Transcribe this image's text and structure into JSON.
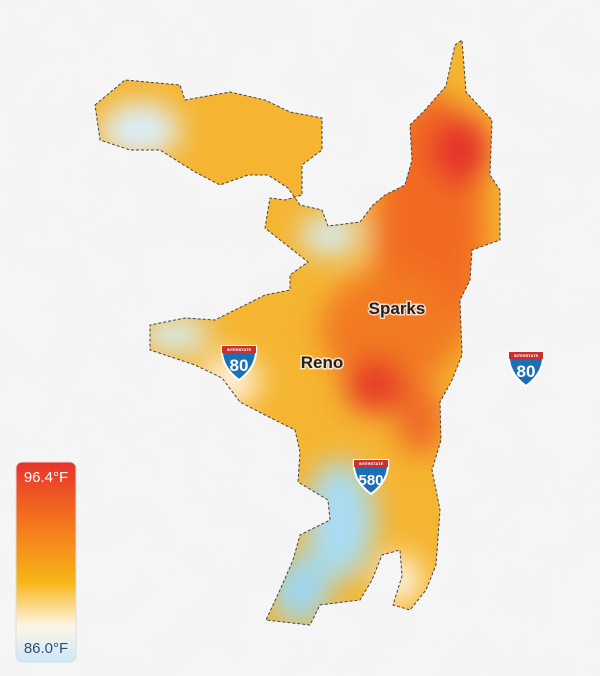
{
  "map": {
    "cities": [
      {
        "label": "Sparks"
      },
      {
        "label": "Reno"
      }
    ],
    "shields": [
      {
        "network": "INTERSTATE",
        "number": "80"
      },
      {
        "network": "INTERSTATE",
        "number": "580"
      },
      {
        "network": "INTERSTATE",
        "number": "80"
      }
    ],
    "legend": {
      "max": "96.4°F",
      "min": "86.0°F"
    }
  }
}
